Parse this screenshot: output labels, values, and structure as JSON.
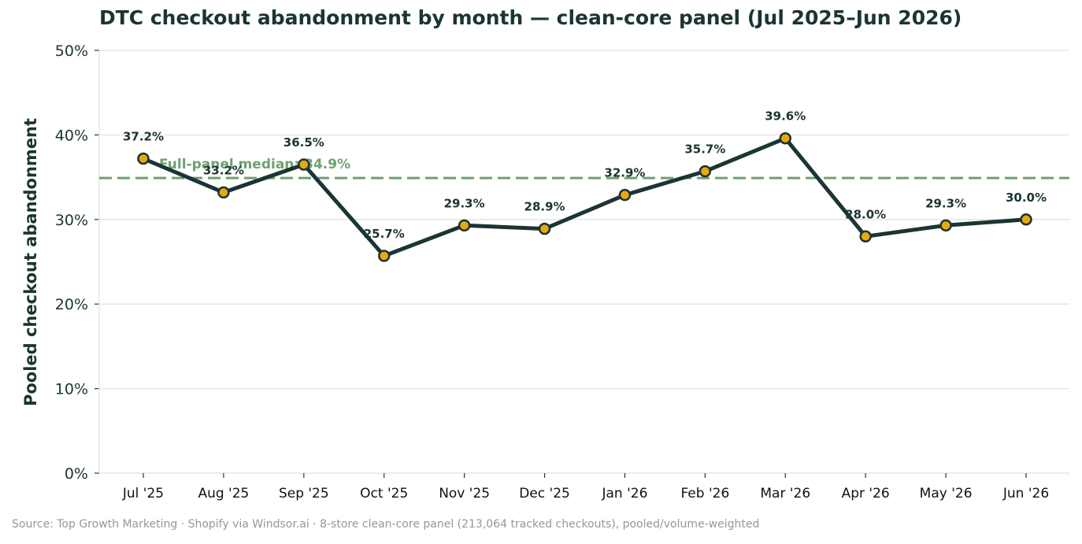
{
  "chart_data": {
    "type": "line",
    "title": "DTC checkout abandonment by month — clean-core panel (Jul 2025–Jun 2026)",
    "ylabel": "Pooled checkout abandonment",
    "xlabel": "",
    "categories": [
      "Jul '25",
      "Aug '25",
      "Sep '25",
      "Oct '25",
      "Nov '25",
      "Dec '25",
      "Jan '26",
      "Feb '26",
      "Mar '26",
      "Apr '26",
      "May '26",
      "Jun '26"
    ],
    "series": [
      {
        "values": [
          37.2,
          33.2,
          36.5,
          25.7,
          29.3,
          28.9,
          32.9,
          35.7,
          39.6,
          28.0,
          29.3,
          30.0
        ]
      }
    ],
    "data_labels": [
      "37.2%",
      "33.2%",
      "36.5%",
      "25.7%",
      "29.3%",
      "28.9%",
      "32.9%",
      "35.7%",
      "39.6%",
      "28.0%",
      "29.3%",
      "30.0%"
    ],
    "ylim": [
      0,
      50
    ],
    "yticks": [
      0,
      10,
      20,
      30,
      40,
      50
    ],
    "ytick_labels": [
      "0%",
      "10%",
      "20%",
      "30%",
      "40%",
      "50%"
    ],
    "grid": true,
    "reference_line": {
      "value": 34.9,
      "label": "Full-panel median: 34.9%"
    },
    "colors": {
      "line": "#1b3434",
      "marker_fill": "#e8a90f",
      "reference": "#6fa06f",
      "grid": "#e3e3e3"
    }
  },
  "footer": {
    "source": "Source: Top Growth Marketing · Shopify via Windsor.ai · 8-store clean-core panel (213,064 tracked checkouts), pooled/volume-weighted"
  }
}
